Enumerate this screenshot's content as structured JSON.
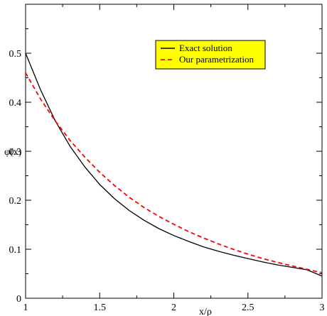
{
  "chart_data": {
    "type": "line",
    "title": "",
    "xlabel": "x/ρ",
    "ylabel": "φ(x)",
    "xlim": [
      1,
      3
    ],
    "ylim": [
      0,
      0.6
    ],
    "grid": false,
    "legend_position": "top-right",
    "x_ticks": [
      1,
      1.5,
      2,
      2.5,
      3
    ],
    "x_tick_labels": [
      "1",
      "1.5",
      "2",
      "2.5",
      "3"
    ],
    "y_ticks": [
      0,
      0.1,
      0.2,
      0.3,
      0.4,
      0.5
    ],
    "y_tick_labels": [
      "0",
      "0.1",
      "0.2",
      "0.3",
      "0.4",
      "0.5"
    ],
    "legend_background": "#ffff00",
    "series": [
      {
        "name": "Exact solution",
        "color": "#000000",
        "style": "solid",
        "x": [
          1.0,
          1.1,
          1.2,
          1.3,
          1.4,
          1.5,
          1.6,
          1.7,
          1.8,
          1.9,
          2.0,
          2.1,
          2.2,
          2.3,
          2.4,
          2.5,
          2.6,
          2.7,
          2.8,
          2.9,
          3.0
        ],
        "y": [
          0.5,
          0.426,
          0.362,
          0.31,
          0.268,
          0.232,
          0.203,
          0.179,
          0.159,
          0.142,
          0.128,
          0.116,
          0.105,
          0.096,
          0.088,
          0.081,
          0.074,
          0.068,
          0.063,
          0.058,
          0.045
        ]
      },
      {
        "name": "Our parametrization",
        "color": "#ff0000",
        "style": "dashed",
        "x": [
          1.0,
          1.1,
          1.2,
          1.3,
          1.4,
          1.5,
          1.6,
          1.7,
          1.8,
          1.9,
          2.0,
          2.1,
          2.2,
          2.3,
          2.4,
          2.5,
          2.6,
          2.7,
          2.8,
          2.9,
          3.0
        ],
        "y": [
          0.46,
          0.407,
          0.362,
          0.322,
          0.288,
          0.257,
          0.23,
          0.206,
          0.185,
          0.167,
          0.151,
          0.136,
          0.123,
          0.111,
          0.1,
          0.09,
          0.081,
          0.073,
          0.066,
          0.059,
          0.052
        ]
      }
    ]
  }
}
